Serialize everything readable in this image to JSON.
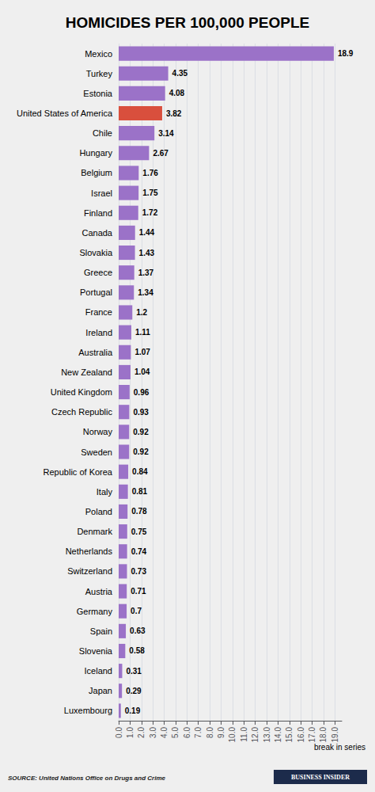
{
  "chart_data": {
    "type": "bar",
    "orientation": "horizontal",
    "title": "HOMICIDES PER 100,000 PEOPLE",
    "categories": [
      "Mexico",
      "Turkey",
      "Estonia",
      "United States of America",
      "Chile",
      "Hungary",
      "Belgium",
      "Israel",
      "Finland",
      "Canada",
      "Slovakia",
      "Greece",
      "Portugal",
      "France",
      "Ireland",
      "Australia",
      "New Zealand",
      "United Kingdom",
      "Czech Republic",
      "Norway",
      "Sweden",
      "Republic of Korea",
      "Italy",
      "Poland",
      "Denmark",
      "Netherlands",
      "Switzerland",
      "Austria",
      "Germany",
      "Spain",
      "Slovenia",
      "Iceland",
      "Japan",
      "Luxembourg"
    ],
    "values": [
      18.9,
      4.35,
      4.08,
      3.82,
      3.14,
      2.67,
      1.76,
      1.75,
      1.72,
      1.44,
      1.43,
      1.37,
      1.34,
      1.2,
      1.11,
      1.07,
      1.04,
      0.96,
      0.93,
      0.92,
      0.92,
      0.84,
      0.81,
      0.78,
      0.75,
      0.74,
      0.73,
      0.71,
      0.7,
      0.63,
      0.58,
      0.31,
      0.29,
      0.19
    ],
    "colors": [
      "#9b72c8",
      "#9b72c8",
      "#9b72c8",
      "#d94f3d",
      "#9b72c8",
      "#9b72c8",
      "#9b72c8",
      "#9b72c8",
      "#9b72c8",
      "#9b72c8",
      "#9b72c8",
      "#9b72c8",
      "#9b72c8",
      "#9b72c8",
      "#9b72c8",
      "#9b72c8",
      "#9b72c8",
      "#9b72c8",
      "#9b72c8",
      "#9b72c8",
      "#9b72c8",
      "#9b72c8",
      "#9b72c8",
      "#9b72c8",
      "#9b72c8",
      "#9b72c8",
      "#9b72c8",
      "#9b72c8",
      "#9b72c8",
      "#9b72c8",
      "#9b72c8",
      "#9b72c8",
      "#9b72c8",
      "#9b72c8"
    ],
    "xlim": [
      0,
      19.6
    ],
    "xticks": [
      {
        "value": 0,
        "label": "0.0"
      },
      {
        "value": 1,
        "label": "1.0"
      },
      {
        "value": 2,
        "label": "2.0"
      },
      {
        "value": 3,
        "label": "3.0"
      },
      {
        "value": 4,
        "label": "4.0"
      },
      {
        "value": 5,
        "label": "5.0"
      },
      {
        "value": 6,
        "label": "6.0"
      },
      {
        "value": 7,
        "label": "7.0"
      },
      {
        "value": 8,
        "label": "8.0"
      },
      {
        "value": 9,
        "label": "9.0"
      },
      {
        "value": 10,
        "label": "10.0"
      },
      {
        "value": 11,
        "label": "11.0"
      },
      {
        "value": 12,
        "label": "12.0"
      },
      {
        "value": 13,
        "label": "13.0"
      },
      {
        "value": 14,
        "label": "14.0"
      },
      {
        "value": 15,
        "label": "15.0"
      },
      {
        "value": 16,
        "label": "16.0"
      },
      {
        "value": 17,
        "label": "17.0"
      },
      {
        "value": 18,
        "label": "18.0"
      },
      {
        "value": 19,
        "label": "19.0"
      }
    ],
    "data_labels": true,
    "grid": true,
    "annotations": [
      "break in series",
      "BUSINESS INSIDER"
    ],
    "source": "SOURCE: United Nations Office on Drugs and Crime"
  }
}
